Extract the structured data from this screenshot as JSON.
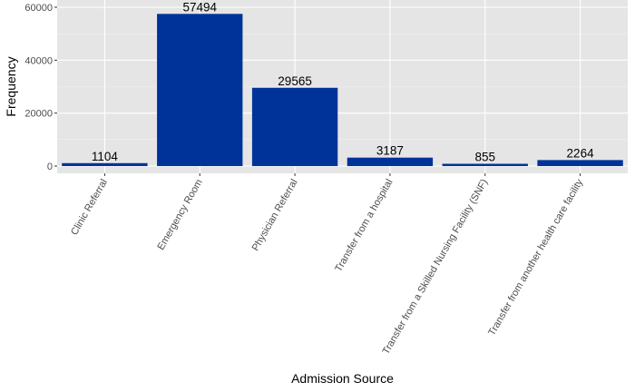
{
  "chart_data": {
    "type": "bar",
    "categories": [
      "Clinic Referral",
      "Emergency Room",
      "Physician Referral",
      "Transfer from a hospital",
      "Transfer from a Skilled Nursing Facility (SNF)",
      "Transfer from another health care facility"
    ],
    "values": [
      1104,
      57494,
      29565,
      3187,
      855,
      2264
    ],
    "value_labels": [
      "1104",
      "57494",
      "29565",
      "3187",
      "855",
      "2264"
    ],
    "xlabel": "Admission Source",
    "ylabel": "Frequency",
    "ylim": [
      0,
      60000
    ],
    "yticks": [
      0,
      20000,
      40000,
      60000
    ],
    "ytick_labels": [
      "0",
      "20000",
      "40000",
      "60000"
    ],
    "grid": true,
    "colors": {
      "bar": "#003399",
      "panel": "#e5e5e5",
      "grid_major": "#ffffff",
      "grid_minor": "#f2f2f2",
      "tick_text": "#4d4d4d"
    }
  }
}
